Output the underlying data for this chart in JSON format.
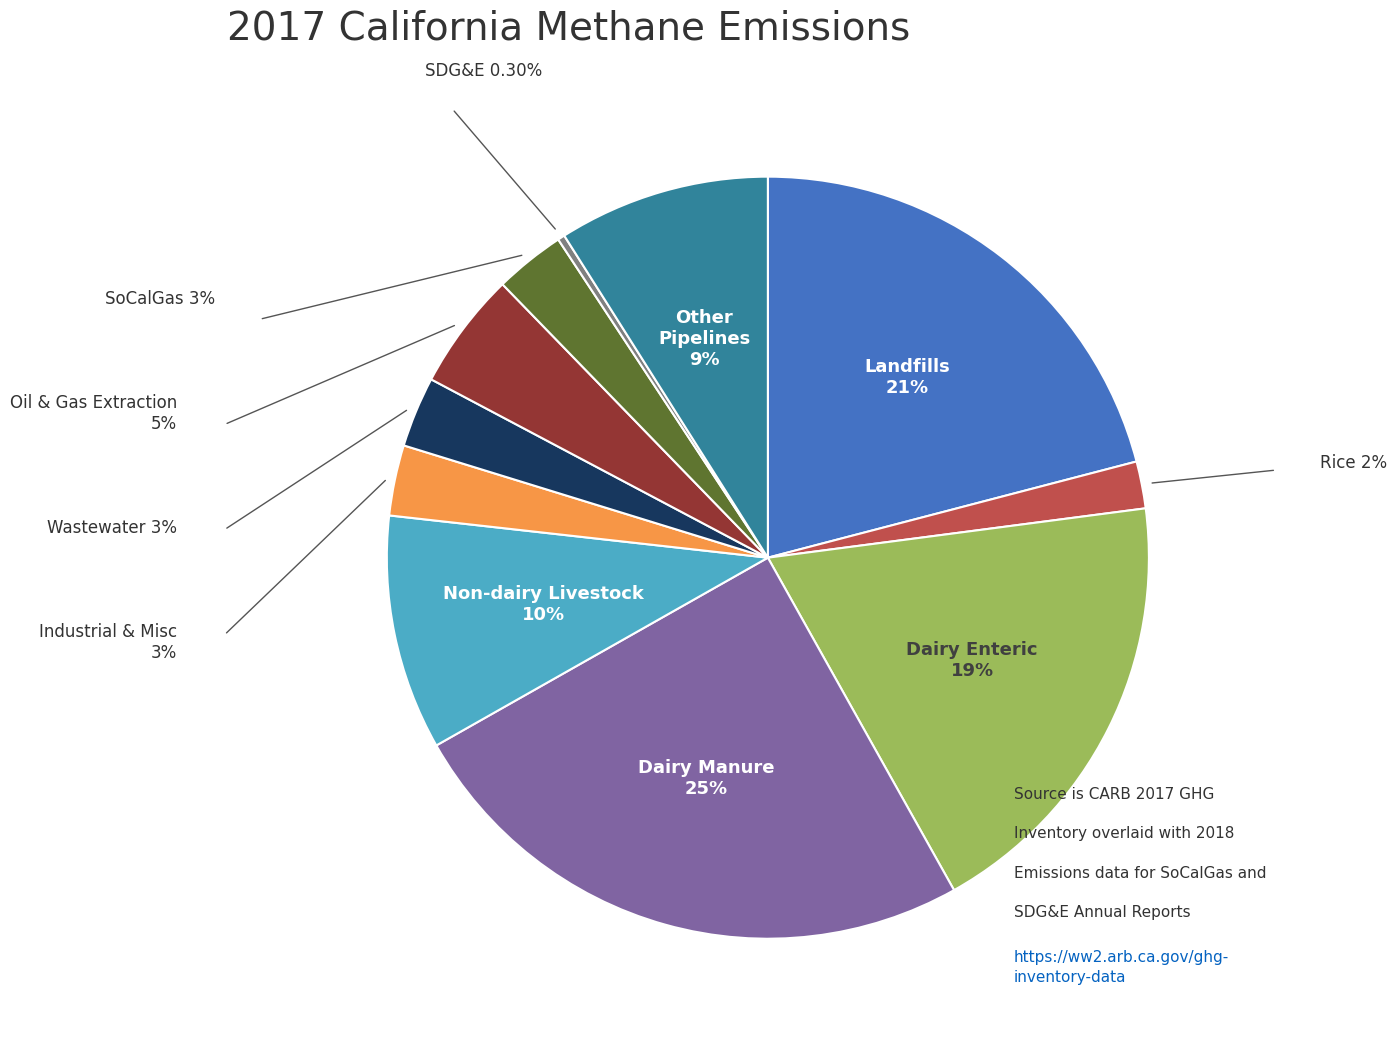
{
  "title": "2017 California Methane Emissions",
  "title_fontsize": 28,
  "background_color": "#ffffff",
  "slices": [
    {
      "label": "Landfills",
      "pct": 21,
      "color": "#4472C4",
      "text_color": "white",
      "inside": true
    },
    {
      "label": "Rice",
      "pct": 2,
      "color": "#C0504D",
      "text_color": "black",
      "inside": false
    },
    {
      "label": "Dairy Enteric",
      "pct": 19,
      "color": "#9BBB59",
      "text_color": "#404040",
      "inside": true
    },
    {
      "label": "Dairy Manure",
      "pct": 25,
      "color": "#8064A2",
      "text_color": "white",
      "inside": true
    },
    {
      "label": "Non-dairy Livestock",
      "pct": 10,
      "color": "#4BACC6",
      "text_color": "white",
      "inside": true
    },
    {
      "label": "Industrial & Misc",
      "pct": 3,
      "color": "#F79646",
      "text_color": "black",
      "inside": false
    },
    {
      "label": "Wastewater",
      "pct": 3,
      "color": "#17375E",
      "text_color": "black",
      "inside": false
    },
    {
      "label": "Oil & Gas Extraction",
      "pct": 5,
      "color": "#943634",
      "text_color": "black",
      "inside": false
    },
    {
      "label": "SoCalGas",
      "pct": 3,
      "color": "#5F7530",
      "text_color": "black",
      "inside": false
    },
    {
      "label": "SDG&E",
      "pct": 0.3,
      "color": "#808080",
      "text_color": "black",
      "inside": false
    },
    {
      "label": "Other\nPipelines",
      "pct": 9,
      "color": "#31849B",
      "text_color": "white",
      "inside": true
    }
  ],
  "source_text": "Source is CARB 2017 GHG\nInventory overlaid with 2018\nEmissions data for SoCalGas and\nSDG&E Annual Reports\nhttps://ww2.arb.ca.gov/ghg-\ninventory-data",
  "source_url": "https://ww2.arb.ca.gov/ghg-inventory-data"
}
